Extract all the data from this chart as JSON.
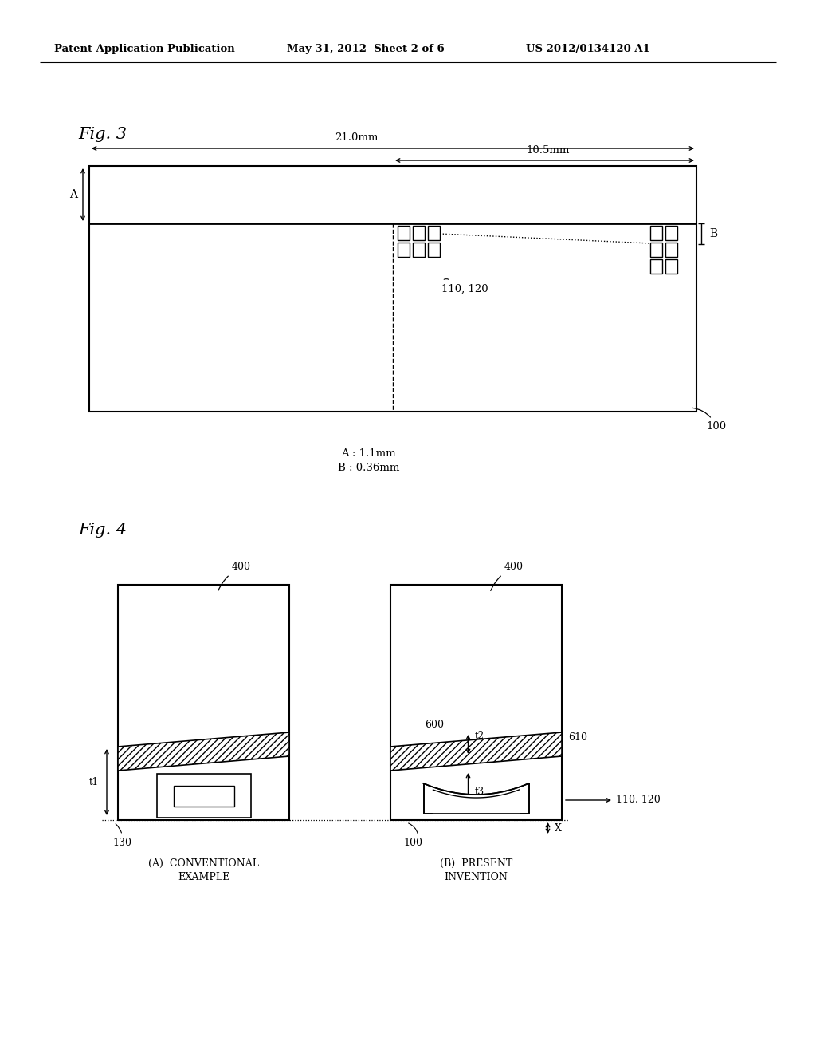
{
  "bg_color": "#ffffff",
  "header_text": "Patent Application Publication",
  "header_date": "May 31, 2012  Sheet 2 of 6",
  "header_patent": "US 2012/0134120 A1",
  "fig3_label": "Fig. 3",
  "fig4_label": "Fig. 4",
  "note_A": "A : 1.1mm",
  "note_B": "B : 0.36mm",
  "label_100": "100",
  "label_110_120_fig3": "110, 120",
  "label_21mm": "21.0mm",
  "label_10_5mm": "10.5mm",
  "label_A": "A",
  "label_B": "B",
  "fig4_label_400a": "400",
  "fig4_label_400b": "400",
  "fig4_label_600": "600",
  "fig4_label_610": "610",
  "fig4_label_t1": "t1",
  "fig4_label_t2": "t2",
  "fig4_label_t3": "t3",
  "fig4_label_130": "130",
  "fig4_label_100": "100",
  "fig4_label_x": "X",
  "fig4_label_110_120": "110. 120",
  "fig4_caption_A_line1": "(A)  CONVENTIONAL",
  "fig4_caption_A_line2": "EXAMPLE",
  "fig4_caption_B_line1": "(B)  PRESENT",
  "fig4_caption_B_line2": "INVENTION"
}
